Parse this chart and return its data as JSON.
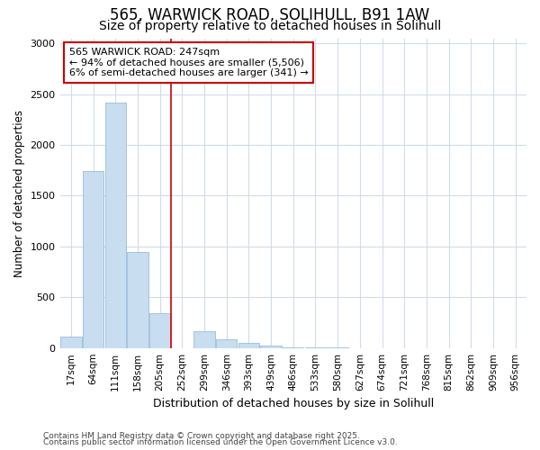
{
  "title1": "565, WARWICK ROAD, SOLIHULL, B91 1AW",
  "title2": "Size of property relative to detached houses in Solihull",
  "xlabel": "Distribution of detached houses by size in Solihull",
  "ylabel": "Number of detached properties",
  "categories": [
    "17sqm",
    "64sqm",
    "111sqm",
    "158sqm",
    "205sqm",
    "252sqm",
    "299sqm",
    "346sqm",
    "393sqm",
    "439sqm",
    "486sqm",
    "533sqm",
    "580sqm",
    "627sqm",
    "674sqm",
    "721sqm",
    "768sqm",
    "815sqm",
    "862sqm",
    "909sqm",
    "956sqm"
  ],
  "values": [
    112,
    1745,
    2415,
    945,
    345,
    0,
    162,
    82,
    52,
    25,
    8,
    3,
    2,
    0,
    0,
    0,
    0,
    0,
    0,
    0,
    0
  ],
  "bar_color": "#c8ddf0",
  "bar_edge_color": "#9bbcd8",
  "vline_color": "#cc0000",
  "vline_x_index": 5,
  "annotation_line1": "565 WARWICK ROAD: 247sqm",
  "annotation_line2": "← 94% of detached houses are smaller (5,506)",
  "annotation_line3": "6% of semi-detached houses are larger (341) →",
  "annotation_box_facecolor": "#ffffff",
  "annotation_box_edgecolor": "#cc0000",
  "ylim": [
    0,
    3050
  ],
  "yticks": [
    0,
    500,
    1000,
    1500,
    2000,
    2500,
    3000
  ],
  "footnote1": "Contains HM Land Registry data © Crown copyright and database right 2025.",
  "footnote2": "Contains public sector information licensed under the Open Government Licence v3.0.",
  "bg_color": "#ffffff",
  "grid_color": "#d0dce8",
  "title1_fontsize": 12,
  "title2_fontsize": 10
}
